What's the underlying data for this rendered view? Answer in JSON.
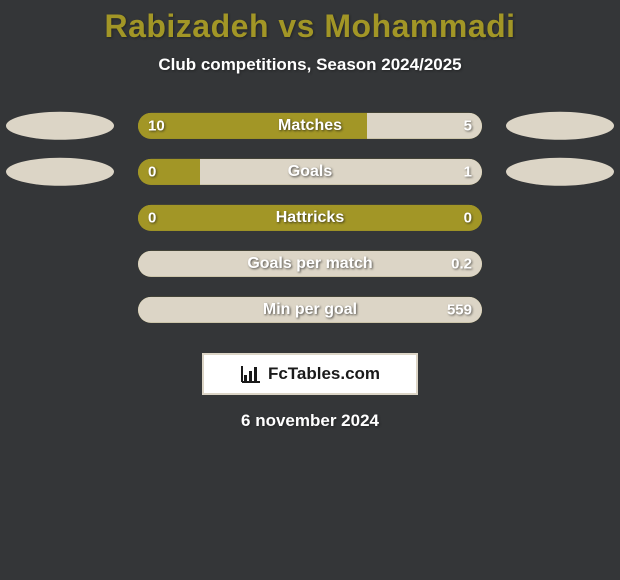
{
  "colors": {
    "background": "#343638",
    "title": "#a29626",
    "subtitle_text": "#ffffff",
    "left_color": "#a29626",
    "right_color": "#dcd5c6",
    "ellipse_left": "#dcd5c6",
    "ellipse_right": "#dcd5c6",
    "logo_border": "#dcd5c6",
    "logo_bg": "#ffffff",
    "logo_text": "#1a1a1a",
    "date_text": "#ffffff"
  },
  "title": "Rabizadeh vs Mohammadi",
  "subtitle": "Club competitions, Season 2024/2025",
  "date": "6 november 2024",
  "logo": {
    "text": "FcTables.com"
  },
  "ellipse_size": {
    "width": 108,
    "height": 28
  },
  "stats": [
    {
      "label": "Matches",
      "left_value": "10",
      "right_value": "5",
      "left_pct": 66.7,
      "right_pct": 33.3,
      "show_left_ellipse": true,
      "show_right_ellipse": true
    },
    {
      "label": "Goals",
      "left_value": "0",
      "right_value": "1",
      "left_pct": 18,
      "right_pct": 82,
      "show_left_ellipse": true,
      "show_right_ellipse": true
    },
    {
      "label": "Hattricks",
      "left_value": "0",
      "right_value": "0",
      "left_pct": 100,
      "right_pct": 0,
      "show_left_ellipse": false,
      "show_right_ellipse": false
    },
    {
      "label": "Goals per match",
      "left_value": "",
      "right_value": "0.2",
      "left_pct": 0,
      "right_pct": 100,
      "show_left_ellipse": false,
      "show_right_ellipse": false
    },
    {
      "label": "Min per goal",
      "left_value": "",
      "right_value": "559",
      "left_pct": 0,
      "right_pct": 100,
      "show_left_ellipse": false,
      "show_right_ellipse": false
    }
  ]
}
